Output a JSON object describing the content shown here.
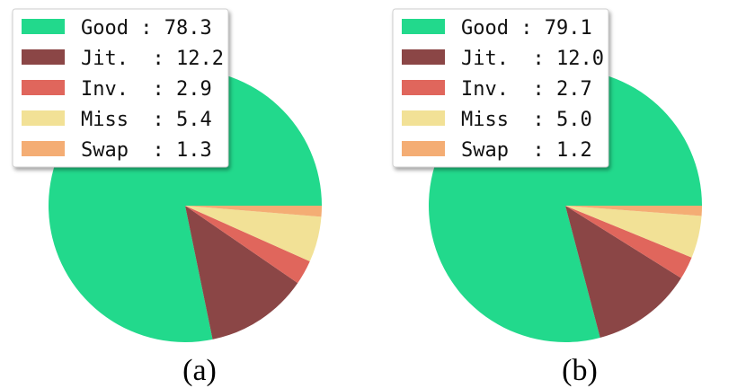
{
  "chart_data": [
    {
      "type": "pie",
      "caption": "(a)",
      "slices": [
        {
          "label": "Good",
          "value": 78.3,
          "color": "#22d98c"
        },
        {
          "label": "Jit.",
          "value": 12.2,
          "color": "#8b4646"
        },
        {
          "label": "Inv.",
          "value": 2.9,
          "color": "#e0665c"
        },
        {
          "label": "Miss",
          "value": 5.4,
          "color": "#f2e196"
        },
        {
          "label": "Swap",
          "value": 1.3,
          "color": "#f4ad74"
        }
      ],
      "legend_entries": [
        "Good : 78.3",
        "Jit.  : 12.2",
        "Inv.  : 2.9",
        "Miss  : 5.4",
        "Swap  : 1.3"
      ],
      "legend_position": "top-left"
    },
    {
      "type": "pie",
      "caption": "(b)",
      "slices": [
        {
          "label": "Good",
          "value": 79.1,
          "color": "#22d98c"
        },
        {
          "label": "Jit.",
          "value": 12.0,
          "color": "#8b4646"
        },
        {
          "label": "Inv.",
          "value": 2.7,
          "color": "#e0665c"
        },
        {
          "label": "Miss",
          "value": 5.0,
          "color": "#f2e196"
        },
        {
          "label": "Swap",
          "value": 1.2,
          "color": "#f4ad74"
        }
      ],
      "legend_entries": [
        "Good : 79.1",
        "Jit.  : 12.0",
        "Inv.  : 2.7",
        "Miss  : 5.0",
        "Swap  : 1.2"
      ],
      "legend_position": "top-left"
    }
  ]
}
